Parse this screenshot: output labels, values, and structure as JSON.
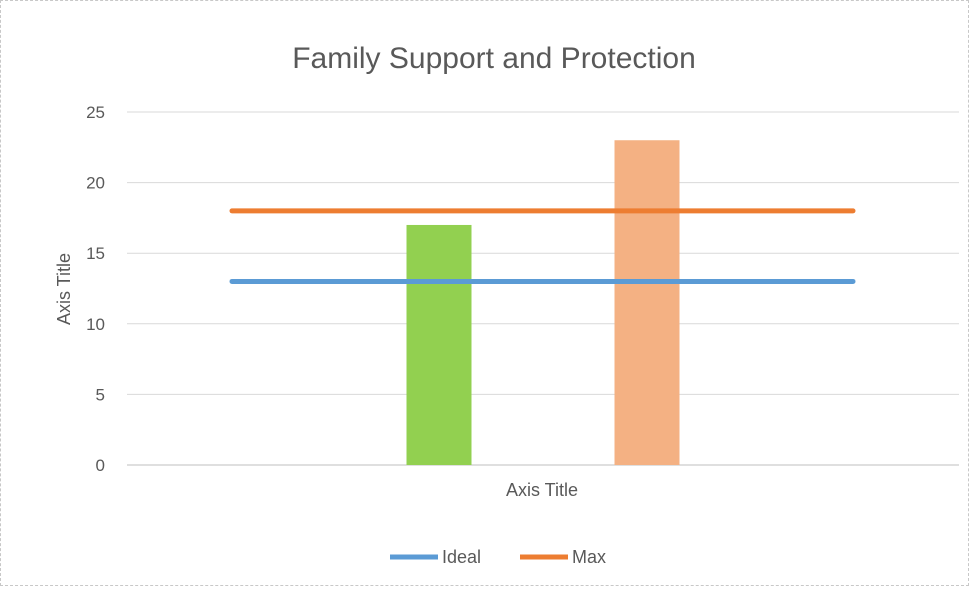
{
  "chart_data": {
    "type": "bar",
    "title": "Family Support and Protection",
    "xlabel": "Axis Title",
    "ylabel": "Axis Title",
    "ylim": [
      0,
      25
    ],
    "yticks": [
      0,
      5,
      10,
      15,
      20,
      25
    ],
    "grid": true,
    "legend_position": "bottom",
    "bars": [
      {
        "value": 17,
        "color": "#92d050"
      },
      {
        "value": 23,
        "color": "#f4b183"
      }
    ],
    "reference_lines": [
      {
        "name": "Ideal",
        "value": 13,
        "color": "#5b9bd5"
      },
      {
        "name": "Max",
        "value": 18,
        "color": "#ed7d31"
      }
    ]
  }
}
